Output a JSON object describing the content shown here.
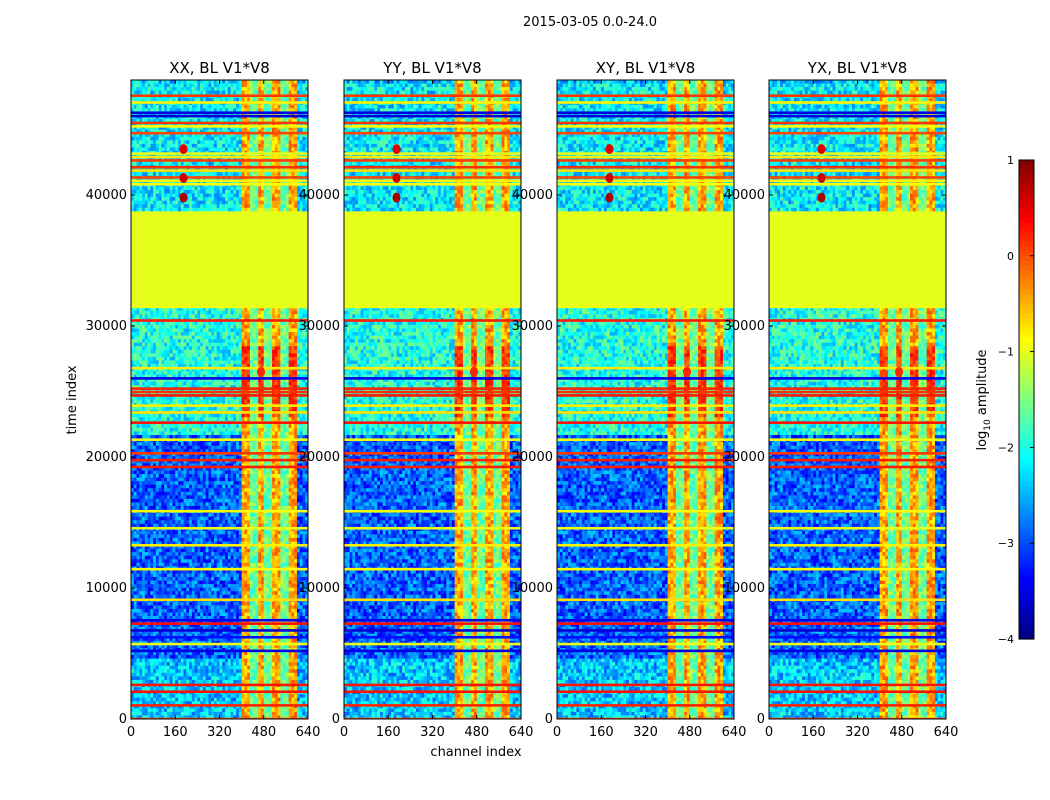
{
  "chart_data": {
    "type": "heatmap",
    "title": "2015-03-05 0.0-24.0",
    "xlabel": "channel index",
    "ylabel": "time index",
    "xlim": [
      0,
      640
    ],
    "ylim": [
      0,
      48000
    ],
    "x_ticks": [
      "0",
      "160",
      "320",
      "480",
      "640"
    ],
    "y_ticks": [
      "0",
      "10000",
      "20000",
      "30000",
      "40000"
    ],
    "x_tick_values": [
      0,
      160,
      320,
      480,
      640
    ],
    "y_tick_values": [
      0,
      10000,
      20000,
      30000,
      40000
    ],
    "colormap": "jet",
    "colorbar": {
      "label_prefix": "log",
      "label_sub": "10",
      "label_suffix": " amplitude",
      "range": [
        -4,
        1
      ],
      "ticks": [
        "1",
        "0",
        "−1",
        "−2",
        "−3",
        "−4"
      ],
      "tick_values": [
        1,
        0,
        -1,
        -2,
        -3,
        -4
      ]
    },
    "panels": [
      {
        "title": "XX, BL V1*V8",
        "variant": 0
      },
      {
        "title": "YY, BL V1*V8",
        "variant": 1
      },
      {
        "title": "XY, BL V1*V8",
        "variant": 2
      },
      {
        "title": "YX, BL V1*V8",
        "variant": 3
      }
    ],
    "structure": {
      "flagged_time_ranges": [
        [
          31500,
          38700
        ]
      ],
      "flagged_value": -1.0,
      "high_amplitude_channel_range": [
        400,
        600
      ],
      "time_regimes": [
        {
          "range": [
            0,
            4700
          ],
          "background": -2.4
        },
        {
          "range": [
            4700,
            21800
          ],
          "background": -2.9
        },
        {
          "range": [
            21800,
            31500
          ],
          "background": -2.0
        },
        {
          "range": [
            38700,
            48500
          ],
          "background": -2.2
        }
      ],
      "hot_spots": [
        {
          "channel": 190,
          "time": 39800,
          "value": 0.8
        },
        {
          "channel": 190,
          "time": 41300,
          "value": 0.6
        },
        {
          "channel": 190,
          "time": 43500,
          "value": 0.5
        },
        {
          "channel": 470,
          "time": 26500,
          "value": 0.2
        }
      ]
    }
  }
}
